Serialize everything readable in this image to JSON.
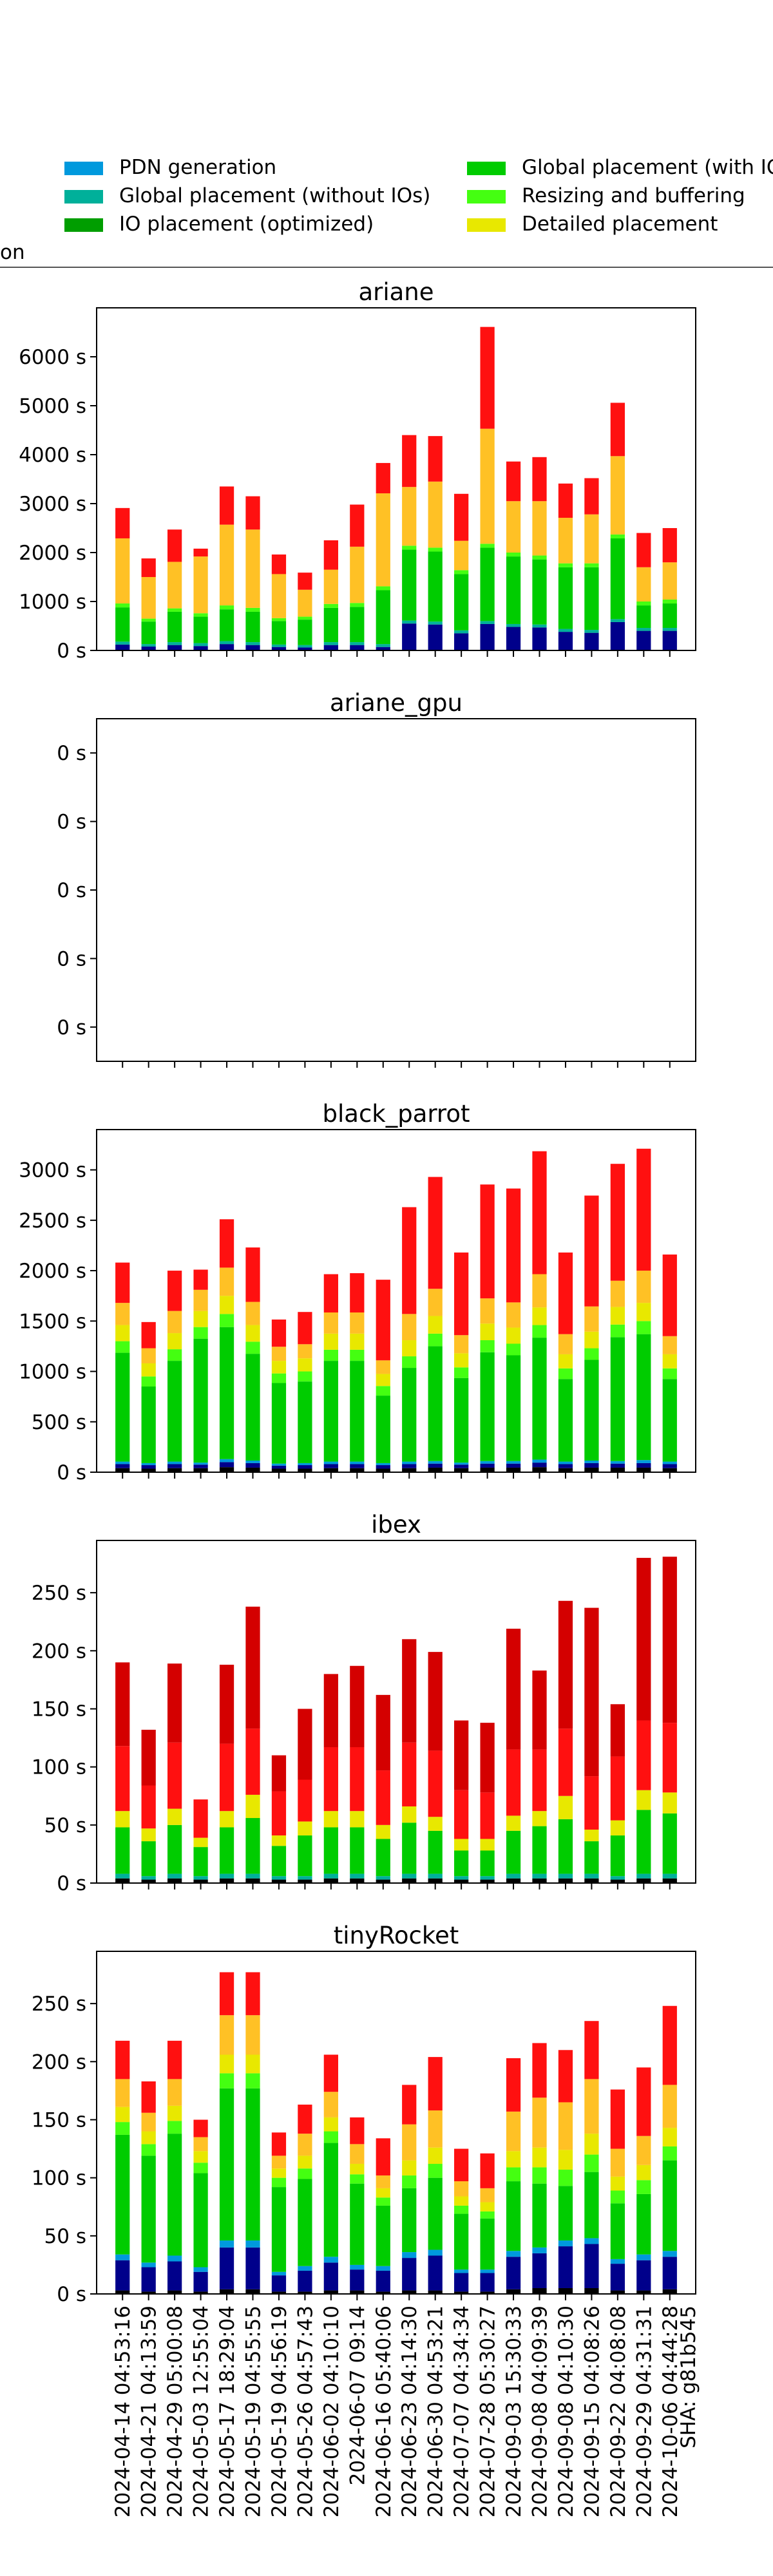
{
  "legend": {
    "items": [
      {
        "label": "PDN generation",
        "color": "#0099dd"
      },
      {
        "label": "Global placement (with IOs)",
        "color": "#00cc00"
      },
      {
        "label": "Global placement (without IOs)",
        "color": "#00b09a"
      },
      {
        "label": "Resizing and buffering",
        "color": "#44ff11"
      },
      {
        "label": "IO placement (optimized)",
        "color": "#009e00"
      },
      {
        "label": "Detailed placement",
        "color": "#e8e800"
      }
    ],
    "cutoff_text": "on"
  },
  "colors": {
    "black": "#000000",
    "navy": "#00008b",
    "orange": "#ffc125",
    "red": "#ff1010",
    "darkred": "#d40000"
  },
  "x_labels": [
    "2024-04-14 04:53:16",
    "2024-04-21 04:13:59",
    "2024-04-29 05:00:08",
    "2024-05-03 12:55:04",
    "2024-05-17 18:29:04",
    "2024-05-19 04:55:55",
    "2024-05-19 04:56:19",
    "2024-05-26 04:57:43",
    "2024-06-02 04:10:10",
    "2024-06-07 09:14",
    "2024-06-16 05:40:06",
    "2024-06-23 04:14:30",
    "2024-06-30 04:53:21",
    "2024-07-07 04:34:34",
    "2024-07-28 05:30:27",
    "2024-09-03 15:30:33",
    "2024-09-08 04:09:39",
    "2024-09-08 04:10:30",
    "2024-09-15 04:08:26",
    "2024-09-22 04:08:08",
    "2024-09-29 04:31:31",
    "2024-10-06 04:44:28",
    "SHA: g81b545"
  ],
  "chart_data": [
    {
      "type": "bar",
      "stacked": true,
      "title": "ariane",
      "ylim": [
        0,
        7000
      ],
      "yticks": [
        0,
        1000,
        2000,
        3000,
        4000,
        5000,
        6000
      ],
      "ytick_labels": [
        "0 s",
        "1000 s",
        "2000 s",
        "3000 s",
        "4000 s",
        "5000 s",
        "6000 s"
      ],
      "series": [
        {
          "color": "navy",
          "values": [
            120,
            80,
            110,
            90,
            130,
            110,
            70,
            60,
            110,
            110,
            70,
            550,
            530,
            350,
            540,
            480,
            470,
            380,
            360,
            580,
            400,
            400
          ]
        },
        {
          "color": "#00b09a",
          "values": [
            60,
            50,
            60,
            60,
            60,
            60,
            50,
            50,
            60,
            60,
            60,
            60,
            60,
            60,
            60,
            60,
            60,
            60,
            60,
            60,
            60,
            60
          ]
        },
        {
          "color": "#00cc00",
          "values": [
            700,
            460,
            620,
            540,
            650,
            620,
            480,
            520,
            700,
            720,
            1100,
            1450,
            1430,
            1150,
            1500,
            1380,
            1330,
            1260,
            1280,
            1650,
            460,
            500
          ]
        },
        {
          "color": "#44ff11",
          "values": [
            80,
            60,
            70,
            70,
            80,
            80,
            60,
            60,
            80,
            80,
            80,
            80,
            80,
            80,
            80,
            80,
            80,
            80,
            80,
            80,
            80,
            80
          ]
        },
        {
          "color": "orange",
          "values": [
            1330,
            850,
            950,
            1160,
            1650,
            1600,
            900,
            550,
            700,
            1150,
            1900,
            1200,
            1350,
            600,
            2350,
            1050,
            1110,
            930,
            1000,
            1600,
            700,
            760
          ]
        },
        {
          "color": "red",
          "values": [
            620,
            380,
            660,
            160,
            780,
            680,
            400,
            350,
            600,
            860,
            620,
            1060,
            930,
            960,
            2080,
            810,
            900,
            700,
            740,
            1090,
            700,
            700
          ]
        }
      ]
    },
    {
      "type": "bar",
      "stacked": true,
      "title": "ariane_gpu",
      "ylim": [
        0,
        1
      ],
      "yticks": [
        0.1,
        0.3,
        0.5,
        0.7,
        0.9
      ],
      "ytick_labels": [
        "0 s",
        "0 s",
        "0 s",
        "0 s",
        "0 s"
      ],
      "series": []
    },
    {
      "type": "bar",
      "stacked": true,
      "title": "black_parrot",
      "ylim": [
        0,
        3400
      ],
      "yticks": [
        0,
        500,
        1000,
        1500,
        2000,
        2500,
        3000
      ],
      "ytick_labels": [
        "0 s",
        "500 s",
        "1000 s",
        "1500 s",
        "2000 s",
        "2500 s",
        "3000 s"
      ],
      "series": [
        {
          "color": "black",
          "values": [
            40,
            35,
            40,
            40,
            50,
            45,
            35,
            35,
            40,
            40,
            35,
            40,
            45,
            40,
            45,
            45,
            50,
            40,
            45,
            45,
            45,
            40
          ]
        },
        {
          "color": "navy",
          "values": [
            40,
            35,
            40,
            35,
            50,
            45,
            30,
            35,
            40,
            40,
            35,
            40,
            40,
            35,
            40,
            40,
            45,
            40,
            45,
            40,
            45,
            40
          ]
        },
        {
          "color": "#0099dd",
          "values": [
            25,
            20,
            25,
            20,
            30,
            25,
            20,
            20,
            25,
            25,
            20,
            25,
            25,
            20,
            25,
            25,
            30,
            25,
            25,
            25,
            30,
            25
          ]
        },
        {
          "color": "#00cc00",
          "values": [
            1080,
            760,
            1000,
            1230,
            1310,
            1060,
            800,
            810,
            1000,
            1000,
            670,
            930,
            1140,
            840,
            1080,
            1050,
            1210,
            820,
            1000,
            1230,
            1250,
            820
          ]
        },
        {
          "color": "#44ff11",
          "values": [
            115,
            100,
            115,
            115,
            130,
            120,
            95,
            100,
            110,
            110,
            95,
            115,
            125,
            105,
            120,
            115,
            125,
            105,
            115,
            125,
            130,
            105
          ]
        },
        {
          "color": "#e8e800",
          "values": [
            160,
            130,
            160,
            160,
            180,
            165,
            125,
            130,
            160,
            160,
            120,
            160,
            175,
            140,
            165,
            160,
            175,
            140,
            165,
            175,
            180,
            140
          ]
        },
        {
          "color": "orange",
          "values": [
            220,
            150,
            220,
            210,
            280,
            230,
            140,
            140,
            210,
            210,
            135,
            260,
            270,
            180,
            250,
            250,
            330,
            200,
            250,
            260,
            320,
            180
          ]
        },
        {
          "color": "red",
          "values": [
            400,
            260,
            400,
            200,
            480,
            540,
            270,
            320,
            380,
            390,
            800,
            1060,
            1110,
            820,
            1130,
            1130,
            1220,
            810,
            1100,
            1160,
            1210,
            810
          ]
        }
      ]
    },
    {
      "type": "bar",
      "stacked": true,
      "title": "ibex",
      "ylim": [
        0,
        295
      ],
      "yticks": [
        0,
        50,
        100,
        150,
        200,
        250
      ],
      "ytick_labels": [
        "0 s",
        "50 s",
        "100 s",
        "150 s",
        "200 s",
        "250 s"
      ],
      "series": [
        {
          "color": "black",
          "values": [
            4,
            3,
            4,
            3,
            4,
            4,
            3,
            3,
            4,
            4,
            3,
            4,
            4,
            3,
            3,
            4,
            4,
            4,
            4,
            3,
            4,
            4
          ]
        },
        {
          "color": "#00b09a",
          "values": [
            4,
            3,
            4,
            3,
            4,
            4,
            3,
            3,
            4,
            4,
            3,
            4,
            4,
            3,
            3,
            4,
            4,
            4,
            4,
            3,
            4,
            4
          ]
        },
        {
          "color": "#00cc00",
          "values": [
            40,
            30,
            42,
            25,
            40,
            48,
            26,
            35,
            40,
            40,
            32,
            44,
            37,
            22,
            22,
            37,
            41,
            47,
            28,
            35,
            55,
            52
          ]
        },
        {
          "color": "#e8e800",
          "values": [
            14,
            11,
            14,
            8,
            14,
            20,
            9,
            12,
            14,
            14,
            12,
            14,
            12,
            10,
            10,
            13,
            13,
            20,
            10,
            13,
            17,
            18
          ]
        },
        {
          "color": "red",
          "values": [
            56,
            37,
            57,
            33,
            58,
            57,
            38,
            36,
            55,
            55,
            47,
            55,
            57,
            42,
            40,
            57,
            53,
            58,
            46,
            55,
            60,
            60
          ]
        },
        {
          "color": "darkred",
          "values": [
            72,
            48,
            68,
            0,
            68,
            105,
            31,
            61,
            63,
            70,
            65,
            89,
            85,
            60,
            60,
            104,
            68,
            110,
            145,
            45,
            140,
            143
          ]
        }
      ]
    },
    {
      "type": "bar",
      "stacked": true,
      "title": "tinyRocket",
      "ylim": [
        0,
        295
      ],
      "yticks": [
        0,
        50,
        100,
        150,
        200,
        250
      ],
      "ytick_labels": [
        "0 s",
        "50 s",
        "100 s",
        "150 s",
        "200 s",
        "250 s"
      ],
      "series": [
        {
          "color": "black",
          "values": [
            3,
            2,
            3,
            2,
            4,
            4,
            2,
            2,
            3,
            3,
            2,
            3,
            3,
            2,
            2,
            4,
            5,
            5,
            5,
            3,
            3,
            4
          ]
        },
        {
          "color": "navy",
          "values": [
            26,
            21,
            25,
            17,
            36,
            36,
            14,
            18,
            24,
            18,
            18,
            28,
            30,
            16,
            16,
            28,
            30,
            36,
            38,
            23,
            26,
            28
          ]
        },
        {
          "color": "#0099dd",
          "values": [
            5,
            4,
            5,
            4,
            6,
            6,
            3,
            4,
            5,
            4,
            4,
            5,
            5,
            3,
            3,
            5,
            5,
            5,
            5,
            4,
            5,
            5
          ]
        },
        {
          "color": "#00cc00",
          "values": [
            103,
            92,
            105,
            81,
            131,
            131,
            73,
            75,
            98,
            70,
            52,
            55,
            62,
            48,
            44,
            60,
            55,
            47,
            57,
            48,
            52,
            78
          ]
        },
        {
          "color": "#44ff11",
          "values": [
            11,
            10,
            11,
            9,
            13,
            13,
            8,
            9,
            10,
            8,
            7,
            11,
            12,
            7,
            6,
            12,
            14,
            14,
            15,
            11,
            12,
            12
          ]
        },
        {
          "color": "#e8e800",
          "values": [
            13,
            11,
            13,
            10,
            16,
            16,
            8,
            11,
            12,
            9,
            8,
            13,
            14,
            8,
            8,
            14,
            17,
            17,
            18,
            12,
            13,
            16
          ]
        },
        {
          "color": "orange",
          "values": [
            24,
            16,
            23,
            12,
            34,
            34,
            11,
            19,
            22,
            17,
            11,
            31,
            32,
            13,
            12,
            34,
            43,
            41,
            47,
            24,
            25,
            37
          ]
        },
        {
          "color": "red",
          "values": [
            33,
            27,
            33,
            15,
            37,
            37,
            20,
            25,
            32,
            23,
            32,
            34,
            46,
            28,
            30,
            46,
            47,
            45,
            50,
            51,
            59,
            68
          ]
        }
      ]
    }
  ]
}
